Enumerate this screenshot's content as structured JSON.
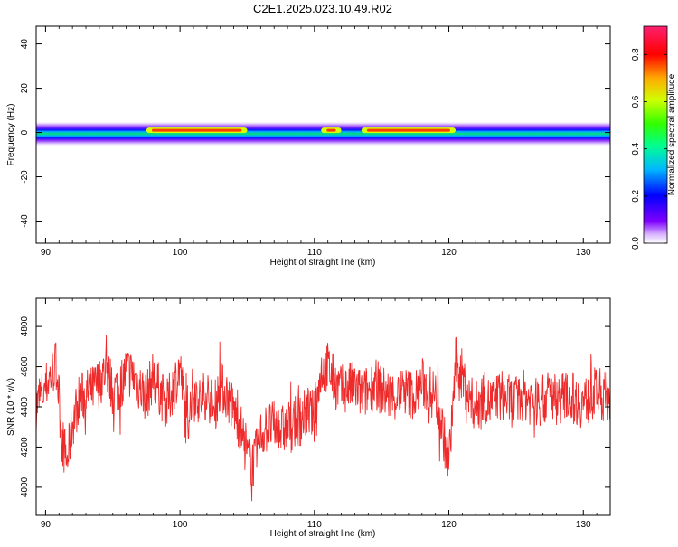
{
  "title": "C2E1.2025.023.10.49.R02",
  "chart_data": [
    {
      "type": "heatmap",
      "xlabel": "Height of straight line (km)",
      "ylabel": "Frequency (Hz)",
      "xlim": [
        89.3,
        132.0
      ],
      "ylim": [
        -50,
        48
      ],
      "x_ticks": [
        "90",
        "100",
        "110",
        "120",
        "130"
      ],
      "y_ticks": [
        "40",
        "20",
        "0",
        "-20",
        "-40"
      ],
      "colorbar": {
        "label": "Normalized spectral amplitude",
        "ticks": [
          "0.0",
          "0.2",
          "0.4",
          "0.6",
          "0.8"
        ],
        "range": [
          0,
          0.92
        ]
      },
      "band": {
        "center_hz": 1,
        "halfwidth_hz": 2,
        "peaks_km": [
          [
            97.5,
            105
          ],
          [
            110.5,
            112
          ],
          [
            113.5,
            120.5
          ]
        ]
      }
    },
    {
      "type": "line",
      "xlabel": "Height of straight line (km)",
      "ylabel": "SNR (10 * v/v)",
      "xlim": [
        89.3,
        132.0
      ],
      "ylim": [
        3860,
        4940
      ],
      "x_ticks": [
        "90",
        "100",
        "110",
        "120",
        "130"
      ],
      "y_ticks": [
        "4800",
        "4600",
        "4400",
        "4200",
        "4000"
      ],
      "color": "#ee2a2a",
      "series": [
        {
          "x": [
            89.3,
            90.0,
            90.4,
            90.8,
            91.2,
            91.6,
            92.0,
            92.5,
            93.0,
            93.5,
            94.0,
            94.5,
            95.0,
            95.5,
            96.0,
            96.5,
            97.0,
            97.5,
            98.0,
            98.5,
            99.0,
            99.5,
            100.0,
            100.5,
            101.0,
            101.5,
            102.0,
            102.5,
            103.0,
            103.5,
            104.0,
            104.5,
            105.0,
            105.5,
            106.0,
            106.5,
            107.0,
            107.5,
            108.0,
            108.5,
            109.0,
            109.5,
            110.0,
            110.5,
            111.0,
            111.5,
            112.0,
            112.5,
            113.0,
            113.5,
            114.0,
            114.5,
            115.0,
            115.5,
            116.0,
            116.5,
            117.0,
            117.5,
            118.0,
            118.5,
            119.0,
            119.5,
            120.0,
            120.5,
            121.0,
            121.5,
            122.0,
            122.5,
            123.0,
            123.5,
            124.0,
            124.5,
            125.0,
            125.5,
            126.0,
            126.5,
            127.0,
            127.5,
            128.0,
            128.5,
            129.0,
            129.5,
            130.0,
            130.5,
            131.0,
            131.5,
            132.0
          ],
          "values": [
            4400,
            4500,
            4560,
            4620,
            4250,
            4120,
            4320,
            4440,
            4460,
            4480,
            4520,
            4600,
            4480,
            4500,
            4580,
            4560,
            4500,
            4450,
            4560,
            4480,
            4400,
            4500,
            4600,
            4300,
            4500,
            4420,
            4480,
            4380,
            4500,
            4460,
            4380,
            4300,
            4150,
            4120,
            4260,
            4300,
            4300,
            4280,
            4300,
            4320,
            4340,
            4380,
            4350,
            4580,
            4600,
            4520,
            4480,
            4500,
            4500,
            4460,
            4480,
            4520,
            4480,
            4460,
            4450,
            4480,
            4470,
            4460,
            4520,
            4480,
            4460,
            4300,
            4100,
            4620,
            4560,
            4440,
            4400,
            4460,
            4420,
            4440,
            4460,
            4430,
            4420,
            4460,
            4440,
            4420,
            4430,
            4470,
            4440,
            4450,
            4460,
            4430,
            4420,
            4440,
            4480,
            4450,
            4460
          ]
        }
      ]
    }
  ]
}
